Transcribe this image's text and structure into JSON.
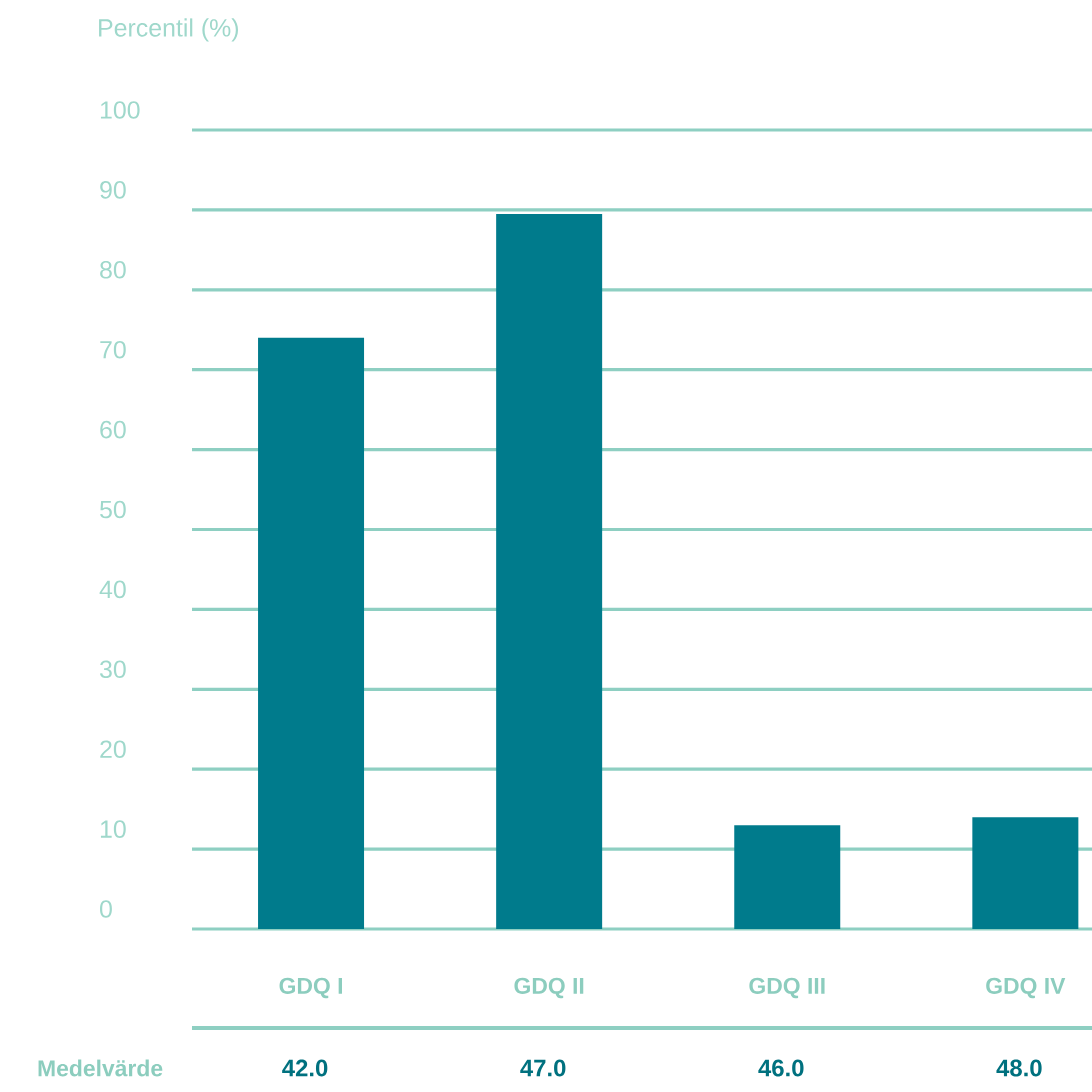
{
  "chart_data": {
    "type": "bar",
    "ylabel": "Percentil (%)",
    "categories": [
      "GDQ I",
      "GDQ II",
      "GDQ III",
      "GDQ IV"
    ],
    "values": [
      74,
      89.5,
      13,
      14
    ],
    "color": "#007b8c",
    "ylim": [
      0,
      100
    ],
    "yticks": [
      0,
      10,
      20,
      30,
      40,
      50,
      60,
      70,
      80,
      90,
      100
    ],
    "grid": "y",
    "annotations": [
      "Medelvärde",
      "42.0",
      "47.0",
      "46.0",
      "48.0"
    ]
  }
}
